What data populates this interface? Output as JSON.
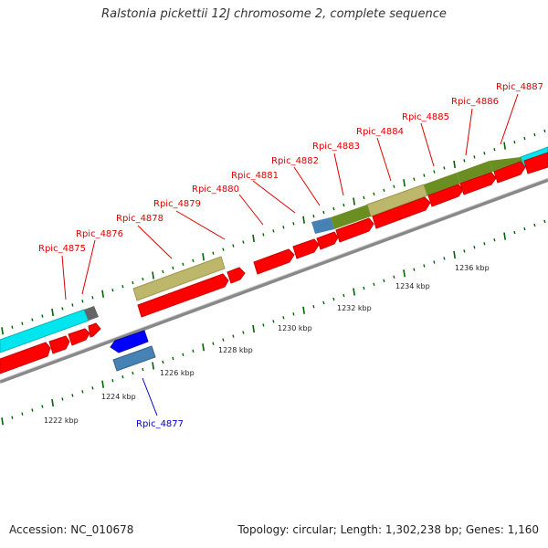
{
  "title": "Ralstonia pickettii 12J chromosome 2, complete sequence",
  "footer": {
    "accession": "Accession: NC_010678",
    "summary": "Topology: circular; Length: 1,302,238 bp; Genes: 1,160"
  },
  "genes_top": [
    {
      "label": "Rpic_4875",
      "color": "#dd0000"
    },
    {
      "label": "Rpic_4876",
      "color": "#dd0000"
    },
    {
      "label": "Rpic_4878",
      "color": "#dd0000"
    },
    {
      "label": "Rpic_4879",
      "color": "#dd0000"
    },
    {
      "label": "Rpic_4880",
      "color": "#dd0000"
    },
    {
      "label": "Rpic_4881",
      "color": "#dd0000"
    },
    {
      "label": "Rpic_4882",
      "color": "#dd0000"
    },
    {
      "label": "Rpic_4883",
      "color": "#dd0000"
    },
    {
      "label": "Rpic_4884",
      "color": "#dd0000"
    },
    {
      "label": "Rpic_4885",
      "color": "#dd0000"
    },
    {
      "label": "Rpic_4886",
      "color": "#dd0000"
    },
    {
      "label": "Rpic_4887",
      "color": "#dd0000"
    }
  ],
  "genes_bottom": [
    {
      "label": "Rpic_4877",
      "color": "#0000cc"
    }
  ],
  "scale_labels": [
    "1222 kbp",
    "1224 kbp",
    "1226 kbp",
    "1228 kbp",
    "1230 kbp",
    "1232 kbp",
    "1234 kbp",
    "1236 kbp"
  ],
  "colors": {
    "cds_forward": "#ff0000",
    "cds_reverse": "#0000ff",
    "cyan_feature": "#00e5ee",
    "khaki_feature": "#bdb76b",
    "olive_feature": "#6b8e23",
    "steel_feature": "#4682b4",
    "tick": "#006400",
    "backbone": "#808080"
  }
}
